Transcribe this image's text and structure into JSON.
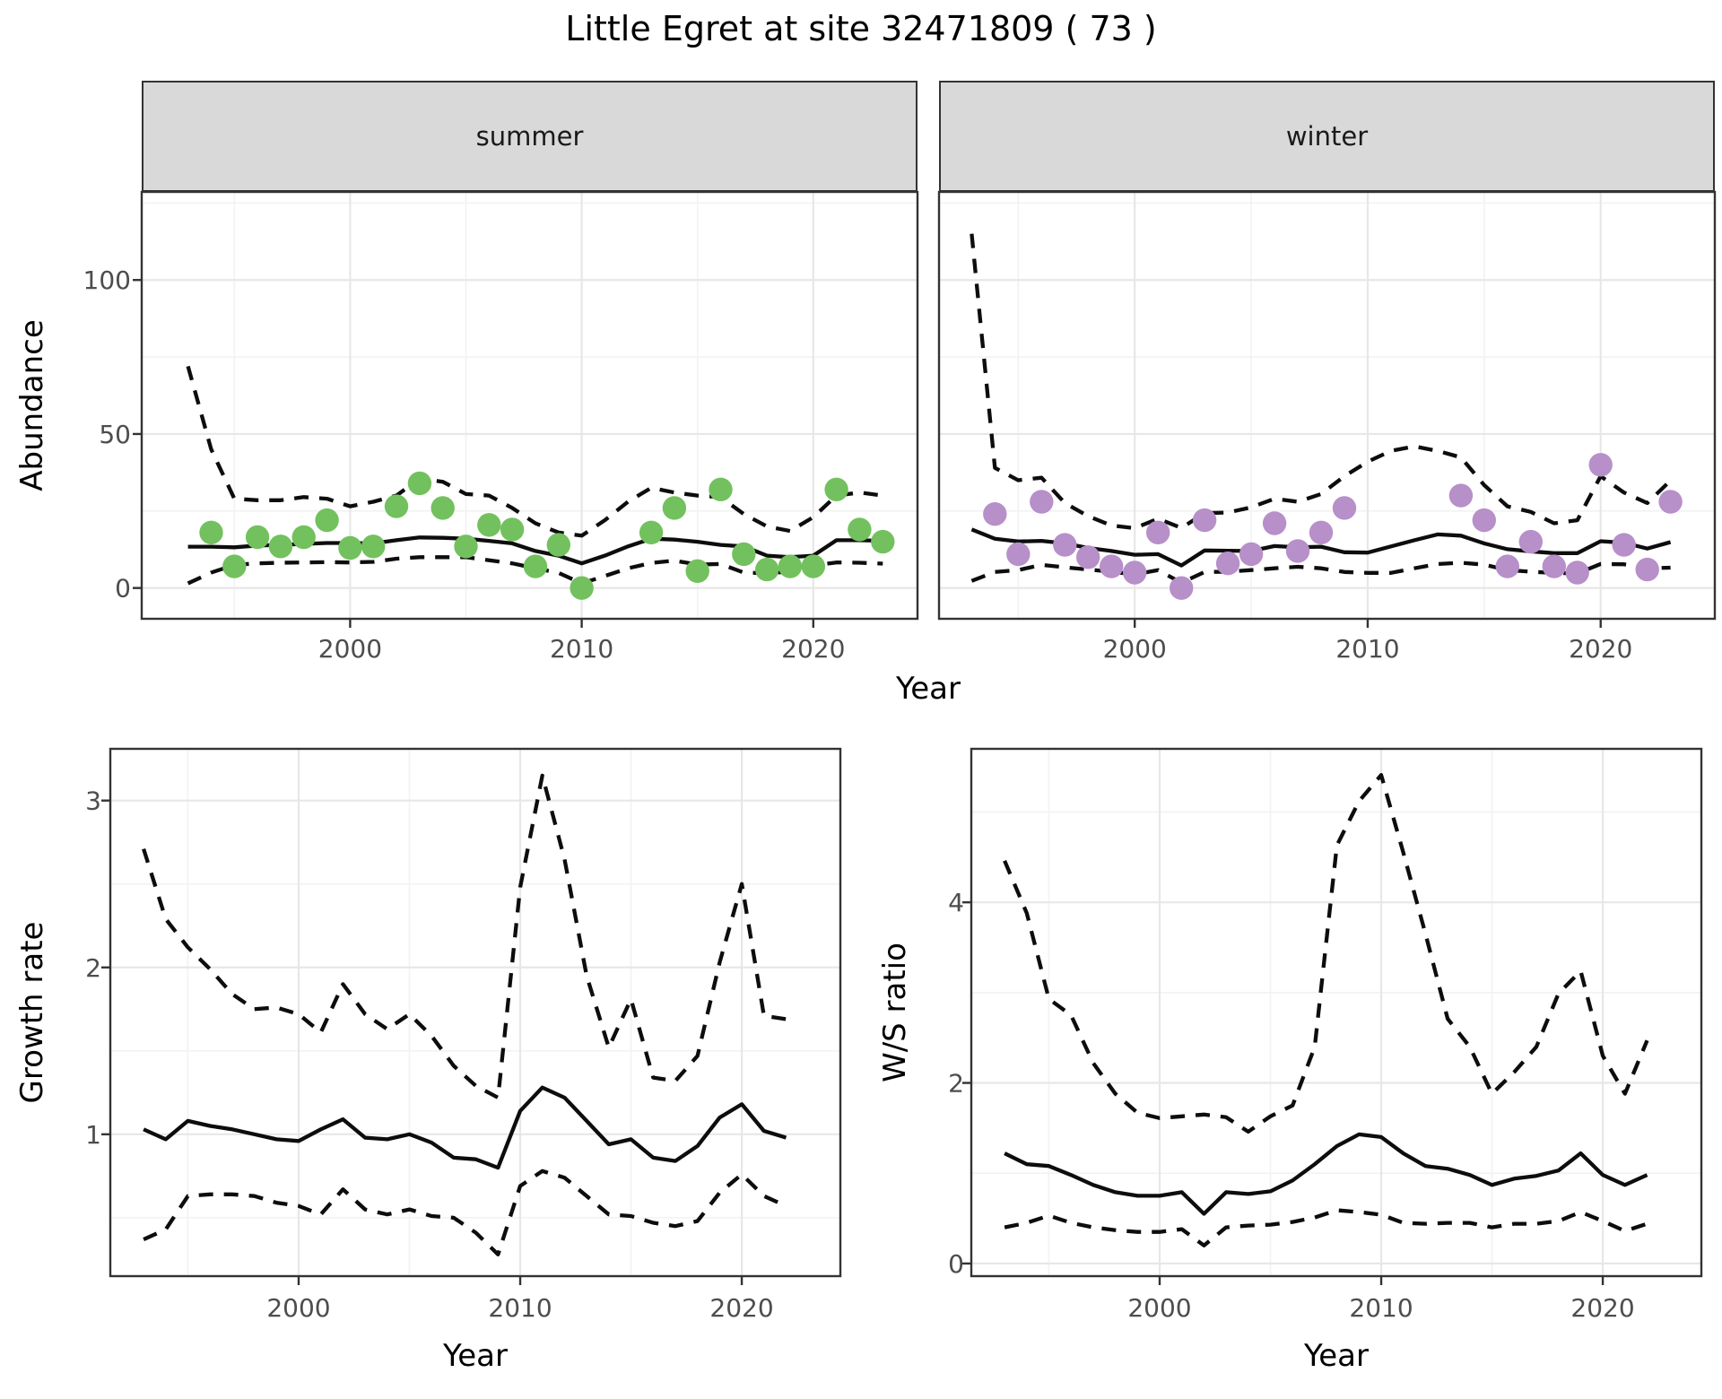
{
  "page": {
    "title": "Little Egret at site 32471809 ( 73 )"
  },
  "facets": {
    "summer": "summer",
    "winter": "winter"
  },
  "axes": {
    "abundance_label": "Abundance",
    "year_label_top": "Year",
    "growth_label": "Growth rate",
    "ws_label": "W/S ratio",
    "year_label_bottom_left": "Year",
    "year_label_bottom_right": "Year"
  },
  "colors": {
    "summer_point": "#72c15e",
    "winter_point": "#b78fc9",
    "line": "#0d0d0d",
    "grid_major": "#e7e7e7",
    "grid_minor": "#f2f2f2",
    "panel_border": "#333333",
    "tick_mark": "#333333",
    "tick_label": "#4d4d4d",
    "strip_bg": "#d9d9d9"
  },
  "chart_data": [
    {
      "id": "abundance-summer",
      "type": "line",
      "facet_label": "summer",
      "xlabel": "Year",
      "ylabel": "Abundance",
      "xlim": [
        1991.0,
        2024.5
      ],
      "ylim": [
        -10,
        128.6
      ],
      "x_ticks": [
        2000,
        2010,
        2020
      ],
      "y_ticks": [
        0,
        50,
        100
      ],
      "grid": true,
      "years": [
        1993,
        1994,
        1995,
        1996,
        1997,
        1998,
        1999,
        2000,
        2001,
        2002,
        2003,
        2004,
        2005,
        2006,
        2007,
        2008,
        2009,
        2010,
        2011,
        2012,
        2013,
        2014,
        2015,
        2016,
        2017,
        2018,
        2019,
        2020,
        2021,
        2022,
        2023
      ],
      "series": [
        {
          "name": "median",
          "style": "solid",
          "values": [
            13.4,
            13.4,
            13.2,
            13.8,
            14,
            14.3,
            14.6,
            14.6,
            14.5,
            15.5,
            16.4,
            16.3,
            16,
            15.3,
            14.5,
            12,
            10.5,
            8,
            10.5,
            13.5,
            16,
            15.7,
            15,
            14,
            13.5,
            10.5,
            10,
            10.5,
            15.5,
            15.5,
            15.3
          ]
        },
        {
          "name": "ci_upper",
          "style": "dashed",
          "values": [
            72,
            45,
            29,
            28.5,
            28.5,
            29.5,
            29,
            26.5,
            28,
            30,
            35.5,
            34.5,
            30.5,
            30,
            26,
            21,
            18,
            17,
            22,
            28,
            32.5,
            31,
            30,
            29.5,
            24,
            20,
            18.5,
            23,
            30,
            31,
            30
          ]
        },
        {
          "name": "ci_lower",
          "style": "dashed",
          "values": [
            1.5,
            5,
            7.5,
            8,
            8.2,
            8.3,
            8.4,
            8.3,
            8.5,
            9.5,
            10,
            10,
            10,
            9,
            8,
            6.4,
            4.9,
            1.5,
            3.9,
            6.4,
            8.1,
            8.9,
            7.6,
            7.8,
            5,
            4.8,
            5.3,
            7.3,
            8.3,
            8.2,
            7.9
          ]
        }
      ],
      "points": {
        "color": "#72c15e",
        "x": [
          1994,
          1995,
          1996,
          1997,
          1998,
          1999,
          2000,
          2001,
          2002,
          2003,
          2004,
          2005,
          2006,
          2007,
          2008,
          2009,
          2010,
          2013,
          2014,
          2015,
          2016,
          2017,
          2018,
          2019,
          2020,
          2021,
          2022,
          2023
        ],
        "y": [
          18,
          7,
          16.5,
          13.5,
          16.5,
          22,
          13,
          13.5,
          26.5,
          34,
          26,
          13.5,
          20.5,
          19,
          7,
          14,
          0,
          18,
          26,
          5.5,
          32,
          11,
          6,
          7,
          7,
          32,
          19,
          15
        ]
      }
    },
    {
      "id": "abundance-winter",
      "type": "line",
      "facet_label": "winter",
      "xlabel": "Year",
      "ylabel": "Abundance",
      "xlim": [
        1991.6,
        2024.9
      ],
      "ylim": [
        -10,
        128.6
      ],
      "x_ticks": [
        2000,
        2010,
        2020
      ],
      "y_ticks": [
        0,
        50,
        100
      ],
      "grid": true,
      "years": [
        1993,
        1994,
        1995,
        1996,
        1997,
        1998,
        1999,
        2000,
        2001,
        2002,
        2003,
        2004,
        2005,
        2006,
        2007,
        2008,
        2009,
        2010,
        2011,
        2012,
        2013,
        2014,
        2015,
        2016,
        2017,
        2018,
        2019,
        2020,
        2021,
        2022,
        2023
      ],
      "series": [
        {
          "name": "median",
          "style": "solid",
          "values": [
            19,
            16,
            15.1,
            15.3,
            14.5,
            13,
            12,
            10.8,
            11,
            7.3,
            12.2,
            12.1,
            12,
            13.6,
            13.2,
            13.4,
            11.6,
            11.5,
            13.5,
            15.5,
            17.4,
            17,
            14.5,
            12.6,
            11.9,
            11.3,
            11.3,
            15.2,
            14.7,
            12.8,
            14.9
          ]
        },
        {
          "name": "ci_upper",
          "style": "dashed",
          "values": [
            115,
            39,
            35,
            35.8,
            27.6,
            23.3,
            20.3,
            19.4,
            22.5,
            19.5,
            24.3,
            24.5,
            26.2,
            29,
            28,
            30.5,
            36.3,
            41,
            44.5,
            46,
            44.5,
            42.4,
            33.4,
            26.5,
            24.7,
            21,
            22,
            36.3,
            31,
            27.6,
            34.9
          ]
        },
        {
          "name": "ci_lower",
          "style": "dashed",
          "values": [
            2.3,
            5.2,
            5.8,
            7.5,
            6.7,
            6,
            5.3,
            4.4,
            5.8,
            1.7,
            5.2,
            5.3,
            5.8,
            6.4,
            6.9,
            6.4,
            5.2,
            4.9,
            4.9,
            6.4,
            7.8,
            8.2,
            7.6,
            5.8,
            5.3,
            4.9,
            4.7,
            7.8,
            7.7,
            6.4,
            6.6
          ]
        }
      ],
      "points": {
        "color": "#b78fc9",
        "x": [
          1994,
          1995,
          1996,
          1997,
          1998,
          1999,
          2000,
          2001,
          2002,
          2003,
          2004,
          2005,
          2006,
          2007,
          2008,
          2009,
          2014,
          2015,
          2016,
          2017,
          2018,
          2019,
          2020,
          2021,
          2022,
          2023
        ],
        "y": [
          24,
          11,
          28,
          14,
          10,
          7,
          5,
          18,
          0,
          22,
          8,
          11,
          21,
          12,
          18,
          26,
          30,
          22,
          7,
          15,
          7,
          5,
          40,
          14,
          6,
          28
        ]
      }
    },
    {
      "id": "growth-rate",
      "type": "line",
      "facet_label": "",
      "xlabel": "Year",
      "ylabel": "Growth rate",
      "xlim": [
        1991.5,
        2024.45
      ],
      "ylim": [
        0.15,
        3.31
      ],
      "x_ticks": [
        2000,
        2010,
        2020
      ],
      "y_ticks": [
        1,
        2,
        3
      ],
      "grid": true,
      "years": [
        1993,
        1994,
        1995,
        1996,
        1997,
        1998,
        1999,
        2000,
        2001,
        2002,
        2003,
        2004,
        2005,
        2006,
        2007,
        2008,
        2009,
        2010,
        2011,
        2012,
        2013,
        2014,
        2015,
        2016,
        2017,
        2018,
        2019,
        2020,
        2021,
        2022
      ],
      "series": [
        {
          "name": "median",
          "style": "solid",
          "values": [
            1.03,
            0.97,
            1.08,
            1.05,
            1.03,
            1.0,
            0.97,
            0.96,
            1.03,
            1.09,
            0.98,
            0.97,
            1.0,
            0.95,
            0.86,
            0.85,
            0.8,
            1.14,
            1.28,
            1.22,
            1.08,
            0.94,
            0.97,
            0.86,
            0.84,
            0.93,
            1.1,
            1.18,
            1.02,
            0.98
          ]
        },
        {
          "name": "ci_upper",
          "style": "dashed",
          "values": [
            2.71,
            2.29,
            2.12,
            1.99,
            1.84,
            1.75,
            1.76,
            1.72,
            1.61,
            1.9,
            1.72,
            1.63,
            1.72,
            1.59,
            1.41,
            1.29,
            1.22,
            2.48,
            3.15,
            2.65,
            1.95,
            1.52,
            1.81,
            1.34,
            1.32,
            1.47,
            2.03,
            2.5,
            1.71,
            1.69
          ]
        },
        {
          "name": "ci_lower",
          "style": "dashed",
          "values": [
            0.37,
            0.43,
            0.63,
            0.64,
            0.64,
            0.63,
            0.59,
            0.57,
            0.52,
            0.67,
            0.55,
            0.52,
            0.55,
            0.51,
            0.5,
            0.41,
            0.28,
            0.69,
            0.78,
            0.74,
            0.63,
            0.52,
            0.51,
            0.47,
            0.45,
            0.48,
            0.65,
            0.76,
            0.63,
            0.57
          ]
        }
      ],
      "points": null
    },
    {
      "id": "ws-ratio",
      "type": "line",
      "facet_label": "",
      "xlabel": "Year",
      "ylabel": "W/S ratio",
      "xlim": [
        1991.5,
        2024.45
      ],
      "ylim": [
        -0.14,
        5.7
      ],
      "x_ticks": [
        2000,
        2010,
        2020
      ],
      "y_ticks": [
        0,
        2,
        4
      ],
      "grid": true,
      "years": [
        1993,
        1994,
        1995,
        1996,
        1997,
        1998,
        1999,
        2000,
        2001,
        2002,
        2003,
        2004,
        2005,
        2006,
        2007,
        2008,
        2009,
        2010,
        2011,
        2012,
        2013,
        2014,
        2015,
        2016,
        2017,
        2018,
        2019,
        2020,
        2021,
        2022
      ],
      "series": [
        {
          "name": "median",
          "style": "solid",
          "values": [
            1.22,
            1.1,
            1.08,
            0.98,
            0.87,
            0.79,
            0.75,
            0.75,
            0.79,
            0.55,
            0.79,
            0.77,
            0.8,
            0.92,
            1.1,
            1.3,
            1.43,
            1.4,
            1.22,
            1.08,
            1.05,
            0.98,
            0.87,
            0.94,
            0.97,
            1.03,
            1.22,
            0.98,
            0.87,
            0.98
          ]
        },
        {
          "name": "ci_upper",
          "style": "dashed",
          "values": [
            4.46,
            3.88,
            2.93,
            2.75,
            2.22,
            1.88,
            1.67,
            1.61,
            1.63,
            1.65,
            1.62,
            1.46,
            1.63,
            1.75,
            2.4,
            4.63,
            5.12,
            5.41,
            4.55,
            3.65,
            2.71,
            2.4,
            1.88,
            2.12,
            2.4,
            2.99,
            3.24,
            2.3,
            1.88,
            2.47
          ]
        },
        {
          "name": "ci_lower",
          "style": "dashed",
          "values": [
            0.4,
            0.45,
            0.53,
            0.45,
            0.4,
            0.37,
            0.35,
            0.35,
            0.38,
            0.2,
            0.4,
            0.42,
            0.43,
            0.46,
            0.51,
            0.59,
            0.57,
            0.54,
            0.45,
            0.44,
            0.45,
            0.45,
            0.4,
            0.44,
            0.44,
            0.47,
            0.57,
            0.47,
            0.36,
            0.44
          ]
        }
      ],
      "points": null
    }
  ]
}
